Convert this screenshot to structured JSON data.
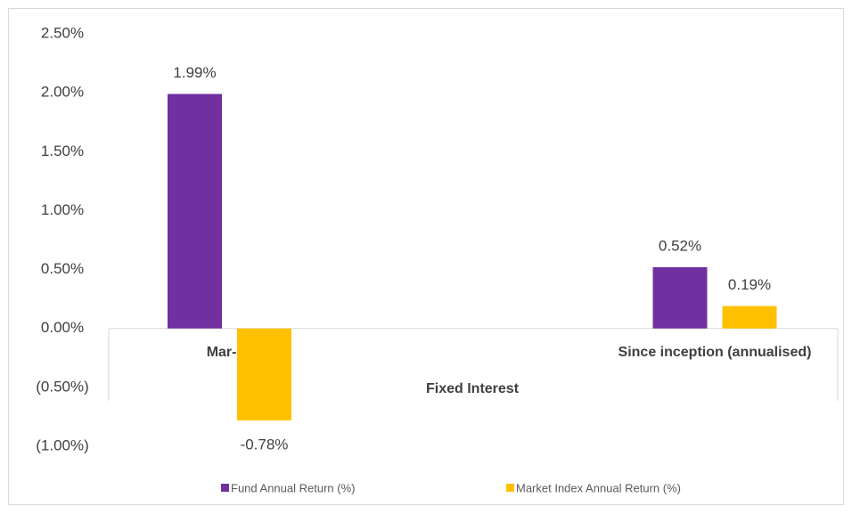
{
  "chart_data": {
    "type": "bar",
    "categories": [
      "Mar-21",
      "Since inception (annualised)"
    ],
    "xlabel": "Fixed Interest",
    "series": [
      {
        "name": "Fund Annual Return (%)",
        "color": "#7030a0",
        "values": [
          1.99,
          0.52
        ],
        "value_labels": [
          "1.99%",
          "0.52%"
        ]
      },
      {
        "name": "Market Index Annual Return (%)",
        "color": "#ffc000",
        "values": [
          -0.78,
          0.19
        ],
        "value_labels": [
          "-0.78%",
          "0.19%"
        ]
      }
    ],
    "ylim": [
      -1,
      2.5
    ],
    "yticks": [
      {
        "value": -1,
        "label": "(1.00%)"
      },
      {
        "value": -0.5,
        "label": "(0.50%)"
      },
      {
        "value": 0,
        "label": "0.00%"
      },
      {
        "value": 0.5,
        "label": "0.50%"
      },
      {
        "value": 1,
        "label": "1.00%"
      },
      {
        "value": 1.5,
        "label": "1.50%"
      },
      {
        "value": 2,
        "label": "2.00%"
      },
      {
        "value": 2.5,
        "label": "2.50%"
      }
    ],
    "grid": false,
    "legend": "bottom"
  }
}
